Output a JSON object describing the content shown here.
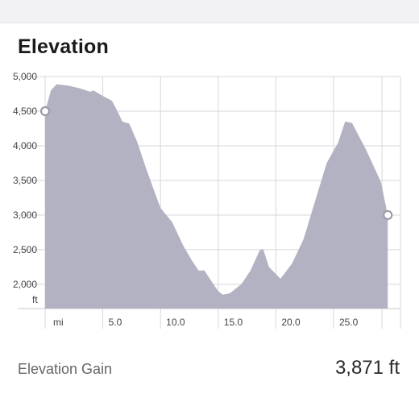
{
  "header": {
    "title": "Elevation"
  },
  "summary": {
    "gain_label": "Elevation Gain",
    "gain_value": "3,871 ft"
  },
  "colors": {
    "area_fill": "#b3b2c2",
    "grid": "#d7d7dc",
    "axis": "#c9c9ce",
    "marker": "#9c9ba8"
  },
  "chart_data": {
    "type": "area",
    "title": "Elevation",
    "xlabel": "",
    "ylabel": "",
    "y_unit": "ft",
    "x_unit": "mi",
    "xlim": [
      0,
      30.8
    ],
    "ylim": [
      1650,
      5000
    ],
    "grid": true,
    "y_ticks": [
      {
        "value": 5000,
        "label": "5,000"
      },
      {
        "value": 4500,
        "label": "4,500"
      },
      {
        "value": 4000,
        "label": "4,000"
      },
      {
        "value": 3500,
        "label": "3,500"
      },
      {
        "value": 3000,
        "label": "3,000"
      },
      {
        "value": 2500,
        "label": "2,500"
      },
      {
        "value": 2000,
        "label": "2,000"
      }
    ],
    "x_ticks": [
      {
        "value": 5,
        "label": "5.0"
      },
      {
        "value": 10,
        "label": "10.0"
      },
      {
        "value": 15,
        "label": "15.0"
      },
      {
        "value": 20,
        "label": "20.0"
      },
      {
        "value": 25,
        "label": "25.0"
      }
    ],
    "x": [
      0,
      0.5,
      1,
      2,
      3,
      3.9,
      4.2,
      5,
      5.8,
      6.2,
      6.7,
      7.3,
      8,
      8.8,
      10,
      11,
      12,
      12.7,
      13.3,
      13.8,
      14.4,
      15,
      15.4,
      16,
      17,
      17.8,
      18.6,
      18.9,
      19.4,
      20.4,
      21.4,
      22.4,
      23.4,
      24.4,
      25.4,
      26,
      26.6,
      27.8,
      29.1,
      29.7
    ],
    "y": [
      4500,
      4800,
      4890,
      4870,
      4830,
      4780,
      4800,
      4720,
      4650,
      4520,
      4350,
      4320,
      4050,
      3650,
      3100,
      2900,
      2550,
      2350,
      2200,
      2200,
      2050,
      1900,
      1850,
      1870,
      2000,
      2200,
      2490,
      2510,
      2250,
      2080,
      2300,
      2650,
      3200,
      3750,
      4050,
      4350,
      4330,
      3950,
      3480,
      3000
    ],
    "markers": [
      {
        "x": 0,
        "y": 4500
      },
      {
        "x": 29.7,
        "y": 3000
      }
    ]
  }
}
